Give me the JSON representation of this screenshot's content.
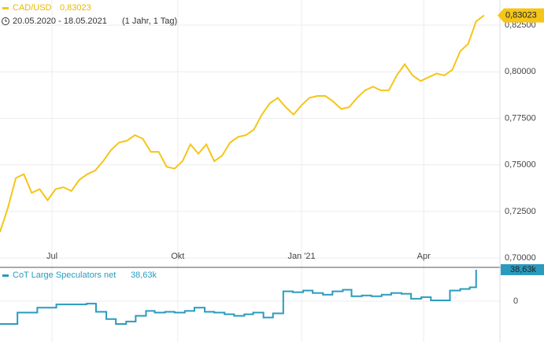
{
  "chart_data": [
    {
      "type": "line",
      "name": "CAD/USD",
      "last_label": "0,83023",
      "color": "#f5c518",
      "period": "20.05.2020 - 18.05.2021",
      "range_note": "(1 Jahr, 1 Tag)",
      "values": [
        0.714,
        0.727,
        0.743,
        0.745,
        0.735,
        0.737,
        0.731,
        0.737,
        0.738,
        0.736,
        0.742,
        0.745,
        0.747,
        0.752,
        0.758,
        0.762,
        0.763,
        0.766,
        0.764,
        0.757,
        0.757,
        0.749,
        0.748,
        0.752,
        0.761,
        0.756,
        0.761,
        0.752,
        0.755,
        0.762,
        0.765,
        0.766,
        0.769,
        0.777,
        0.783,
        0.786,
        0.781,
        0.777,
        0.782,
        0.786,
        0.787,
        0.787,
        0.784,
        0.78,
        0.781,
        0.786,
        0.79,
        0.792,
        0.79,
        0.79,
        0.798,
        0.804,
        0.798,
        0.795,
        0.797,
        0.799,
        0.798,
        0.801,
        0.811,
        0.815,
        0.827,
        0.83023
      ],
      "xlim": [
        0,
        63
      ],
      "xticks": [
        {
          "value": 6.55,
          "label": "Jul"
        },
        {
          "value": 22.4,
          "label": "Okt"
        },
        {
          "value": 38,
          "label": "Jan '21"
        },
        {
          "value": 53.4,
          "label": "Apr"
        }
      ],
      "ylim": [
        0.695,
        0.8385
      ],
      "yticks": [
        {
          "value": 0.7,
          "label": "0,70000"
        },
        {
          "value": 0.725,
          "label": "0,72500"
        },
        {
          "value": 0.75,
          "label": "0,75000"
        },
        {
          "value": 0.775,
          "label": "0,77500"
        },
        {
          "value": 0.8,
          "label": "0,80000"
        },
        {
          "value": 0.825,
          "label": "0,82500"
        }
      ],
      "grid": true
    },
    {
      "type": "step",
      "name": "CoT Large Speculators net",
      "last_label": "38,63k",
      "color": "#2a9bbd",
      "x": [
        0,
        2.2,
        4.7,
        7.1,
        9.7,
        10.9,
        12.1,
        13.4,
        14.6,
        15.9,
        17.1,
        18.4,
        19.5,
        20.8,
        22.0,
        23.3,
        24.5,
        25.8,
        27.0,
        28.3,
        29.5,
        30.8,
        31.9,
        33.2,
        34.4,
        35.7,
        36.9,
        38.2,
        39.4,
        40.7,
        41.9,
        43.2,
        44.3,
        45.6,
        46.8,
        48.1,
        49.3,
        50.6,
        51.8,
        53.1,
        54.3,
        55.6,
        56.7,
        58.0,
        59.2,
        60.0
      ],
      "values": [
        -28,
        -14,
        -8,
        -4,
        -4,
        -3,
        -13,
        -22,
        -28,
        -25,
        -18,
        -12,
        -14,
        -13,
        -14,
        -12,
        -8,
        -13,
        -14,
        -16,
        -18,
        -16,
        -14,
        -20,
        -15,
        12,
        11,
        13,
        10,
        8,
        12,
        14,
        6,
        7,
        6,
        8,
        10,
        9,
        3,
        5,
        1,
        1,
        13,
        15,
        17,
        38.63
      ],
      "xlim": [
        0,
        63
      ],
      "ylim": [
        -50.2,
        41.5
      ],
      "yticks": [
        0
      ],
      "grid": true
    }
  ]
}
